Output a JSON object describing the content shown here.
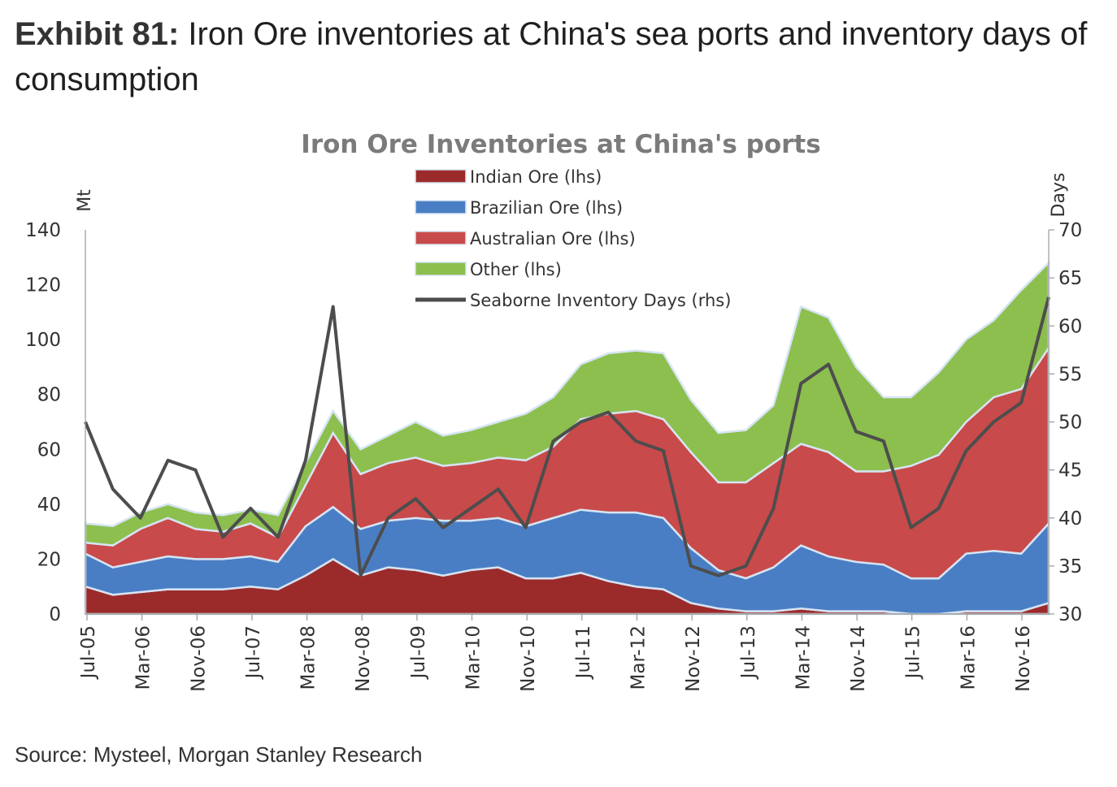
{
  "exhibit": {
    "number": "Exhibit 81:",
    "title": "Iron Ore inventories at China's sea ports and inventory days of consumption"
  },
  "source": "Source: Mysteel, Morgan Stanley Research",
  "chart_data": {
    "type": "area",
    "title": "Iron Ore Inventories at China's ports",
    "ylabel": "Mt",
    "y2label": "Days",
    "ylim": [
      0,
      140
    ],
    "y2lim": [
      30,
      70
    ],
    "yticks": [
      0,
      20,
      40,
      60,
      80,
      100,
      120,
      140
    ],
    "y2ticks": [
      30,
      35,
      40,
      45,
      50,
      55,
      60,
      65,
      70
    ],
    "legend_position": "top-center",
    "stacked": true,
    "x_tick_labels": [
      "Jul-05",
      "Mar-06",
      "Nov-06",
      "Jul-07",
      "Mar-08",
      "Nov-08",
      "Jul-09",
      "Mar-10",
      "Nov-10",
      "Jul-11",
      "Mar-12",
      "Nov-12",
      "Jul-13",
      "Mar-14",
      "Nov-14",
      "Jul-15",
      "Mar-16",
      "Nov-16"
    ],
    "x": [
      "Jul-05",
      "Nov-05",
      "Mar-06",
      "Jul-06",
      "Nov-06",
      "Mar-07",
      "Jul-07",
      "Nov-07",
      "Mar-08",
      "Jul-08",
      "Nov-08",
      "Mar-09",
      "Jul-09",
      "Nov-09",
      "Mar-10",
      "Jul-10",
      "Nov-10",
      "Mar-11",
      "Jul-11",
      "Nov-11",
      "Mar-12",
      "Jul-12",
      "Nov-12",
      "Mar-13",
      "Jul-13",
      "Nov-13",
      "Mar-14",
      "Jul-14",
      "Nov-14",
      "Mar-15",
      "Jul-15",
      "Nov-15",
      "Mar-16",
      "Jul-16",
      "Nov-16",
      "Mar-17"
    ],
    "series": [
      {
        "name": "Indian Ore (lhs)",
        "axis": "left",
        "color": "#9b2b2b",
        "values": [
          10,
          7,
          8,
          9,
          9,
          9,
          10,
          9,
          14,
          20,
          14,
          17,
          16,
          14,
          16,
          17,
          13,
          13,
          15,
          12,
          10,
          9,
          4,
          2,
          1,
          1,
          2,
          1,
          1,
          1,
          0,
          0,
          1,
          1,
          1,
          4
        ]
      },
      {
        "name": "Brazilian Ore (lhs)",
        "axis": "left",
        "color": "#4a7ec4",
        "values": [
          12,
          10,
          11,
          12,
          11,
          11,
          11,
          10,
          18,
          19,
          17,
          17,
          19,
          20,
          18,
          18,
          19,
          22,
          23,
          25,
          27,
          26,
          20,
          14,
          12,
          16,
          23,
          20,
          18,
          17,
          13,
          13,
          21,
          22,
          21,
          29
        ]
      },
      {
        "name": "Australian Ore (lhs)",
        "axis": "left",
        "color": "#c94a4a",
        "values": [
          4,
          8,
          12,
          14,
          11,
          10,
          12,
          9,
          15,
          27,
          20,
          21,
          22,
          20,
          21,
          22,
          24,
          26,
          33,
          36,
          37,
          36,
          35,
          32,
          35,
          38,
          37,
          38,
          33,
          34,
          41,
          45,
          48,
          56,
          60,
          64
        ]
      },
      {
        "name": "Other (lhs)",
        "axis": "left",
        "color": "#8cbf4e",
        "values": [
          7,
          7,
          6,
          5,
          6,
          6,
          5,
          8,
          8,
          8,
          9,
          10,
          13,
          11,
          12,
          13,
          17,
          18,
          20,
          22,
          22,
          24,
          19,
          18,
          19,
          21,
          50,
          49,
          38,
          27,
          25,
          30,
          30,
          28,
          36,
          31
        ]
      },
      {
        "name": "Seaborne Inventory Days (rhs)",
        "axis": "right",
        "color": "#4d4d4d",
        "values": [
          50,
          43,
          40,
          46,
          45,
          38,
          41,
          38,
          46,
          62,
          34,
          40,
          42,
          39,
          41,
          43,
          39,
          48,
          50,
          51,
          48,
          47,
          35,
          34,
          35,
          41,
          54,
          56,
          49,
          48,
          39,
          41,
          47,
          50,
          52,
          63
        ]
      }
    ]
  }
}
